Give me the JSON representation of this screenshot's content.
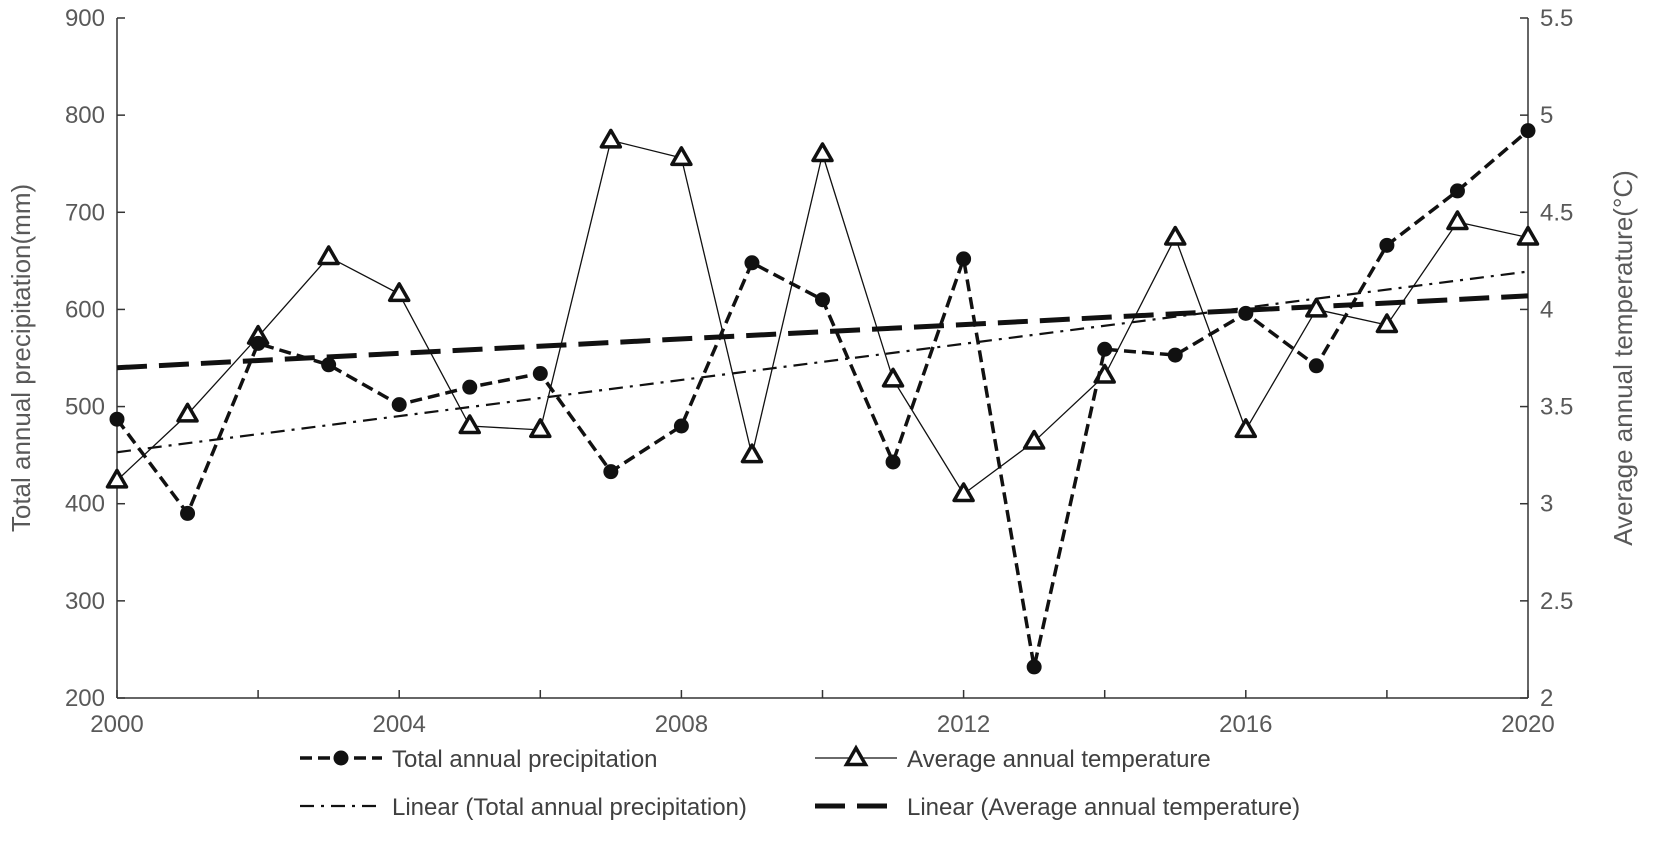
{
  "chart_data": {
    "type": "line",
    "title": "",
    "xlabel": "",
    "ylabel": "Total annual precipitation(mm)",
    "y2label": "Average annual temperature(°C)",
    "xlim": [
      2000,
      2020
    ],
    "ylim": [
      200,
      900
    ],
    "y2lim": [
      2,
      5.5
    ],
    "x_ticks": [
      "2000",
      "2004",
      "2008",
      "2012",
      "2016",
      "2020"
    ],
    "y_ticks": [
      "200",
      "300",
      "400",
      "500",
      "600",
      "700",
      "800",
      "900"
    ],
    "y2_ticks": [
      "2",
      "2.5",
      "3",
      "3.5",
      "4",
      "4.5",
      "5",
      "5.5"
    ],
    "legend_position": "bottom",
    "series": [
      {
        "name": "Total annual precipitation",
        "axis": "left",
        "style": "dashed-circle",
        "x": [
          2000,
          2001,
          2002,
          2003,
          2004,
          2005,
          2006,
          2007,
          2008,
          2009,
          2010,
          2011,
          2012,
          2013,
          2014,
          2015,
          2016,
          2017,
          2018,
          2019,
          2020
        ],
        "values": [
          487,
          390,
          565,
          543,
          502,
          520,
          534,
          433,
          480,
          648,
          610,
          443,
          652,
          232,
          559,
          553,
          596,
          542,
          666,
          722,
          784
        ]
      },
      {
        "name": "Average annual temperature",
        "axis": "right",
        "style": "solid-triangle",
        "x": [
          2000,
          2001,
          2002,
          2003,
          2004,
          2005,
          2006,
          2007,
          2008,
          2009,
          2010,
          2011,
          2012,
          2013,
          2014,
          2015,
          2016,
          2017,
          2018,
          2019,
          2020
        ],
        "values": [
          3.12,
          3.46,
          3.86,
          4.27,
          4.08,
          3.4,
          3.38,
          4.87,
          4.78,
          3.25,
          4.8,
          3.64,
          3.05,
          3.32,
          3.66,
          4.37,
          3.38,
          4.0,
          3.92,
          4.45,
          4.37
        ]
      },
      {
        "name": "Linear (Total annual precipitation)",
        "axis": "left",
        "style": "dash-dot",
        "x": [
          2000,
          2020
        ],
        "values": [
          453,
          639
        ]
      },
      {
        "name": "Linear (Average annual temperature)",
        "axis": "right",
        "style": "long-dash-thick",
        "x": [
          2000,
          2020
        ],
        "values": [
          3.7,
          4.07
        ]
      }
    ]
  }
}
